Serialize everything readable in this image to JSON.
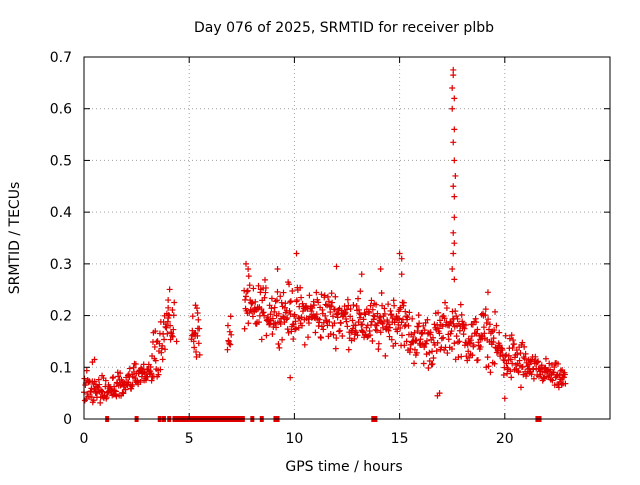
{
  "chart_data": {
    "type": "scatter",
    "title": "Day 076 of 2025, SRMTID for receiver plbb",
    "xlabel": "GPS time / hours",
    "ylabel": "SRMTID / TECUs",
    "xlim": [
      0,
      25
    ],
    "ylim": [
      0,
      0.7
    ],
    "xticks": [
      0,
      5,
      10,
      15,
      20
    ],
    "xtick_labels": [
      "0",
      "5",
      "10",
      "15",
      "20"
    ],
    "yticks": [
      0,
      0.1,
      0.2,
      0.3,
      0.4,
      0.5,
      0.6,
      0.7
    ],
    "ytick_labels": [
      "0",
      "0.1",
      "0.2",
      "0.3",
      "0.4",
      "0.5",
      "0.6",
      "0.7"
    ],
    "grid": true,
    "legend": "none",
    "marker": "plus",
    "color": "#e00000",
    "flag_color": "#e00000",
    "series": [
      {
        "name": "SRMTID",
        "profile": [
          [
            0.0,
            0.065
          ],
          [
            0.5,
            0.062
          ],
          [
            1.0,
            0.058
          ],
          [
            1.5,
            0.055
          ],
          [
            2.0,
            0.065
          ],
          [
            2.5,
            0.08
          ],
          [
            3.0,
            0.088
          ],
          [
            3.3,
            0.105
          ],
          [
            3.6,
            0.15
          ],
          [
            4.0,
            0.185
          ],
          [
            5.2,
            0.17
          ],
          [
            6.9,
            0.145
          ],
          [
            7.7,
            0.23
          ],
          [
            8.0,
            0.2
          ],
          [
            8.5,
            0.215
          ],
          [
            9.0,
            0.205
          ],
          [
            9.5,
            0.21
          ],
          [
            10.0,
            0.205
          ],
          [
            10.5,
            0.2
          ],
          [
            11.0,
            0.205
          ],
          [
            11.5,
            0.2
          ],
          [
            12.0,
            0.2
          ],
          [
            12.5,
            0.195
          ],
          [
            13.0,
            0.19
          ],
          [
            13.5,
            0.185
          ],
          [
            14.0,
            0.18
          ],
          [
            14.5,
            0.19
          ],
          [
            15.0,
            0.2
          ],
          [
            15.5,
            0.16
          ],
          [
            16.0,
            0.155
          ],
          [
            16.5,
            0.15
          ],
          [
            17.0,
            0.165
          ],
          [
            17.5,
            0.18
          ],
          [
            18.0,
            0.165
          ],
          [
            18.5,
            0.15
          ],
          [
            19.0,
            0.165
          ],
          [
            19.5,
            0.145
          ],
          [
            20.0,
            0.12
          ],
          [
            20.5,
            0.115
          ],
          [
            21.0,
            0.1
          ],
          [
            21.5,
            0.095
          ],
          [
            22.0,
            0.09
          ],
          [
            22.5,
            0.08
          ],
          [
            22.9,
            0.075
          ]
        ],
        "spikes": [
          [
            17.55,
            0.675
          ],
          [
            17.55,
            0.665
          ],
          [
            17.5,
            0.64
          ],
          [
            17.6,
            0.62
          ],
          [
            17.5,
            0.6
          ],
          [
            17.6,
            0.56
          ],
          [
            17.55,
            0.535
          ],
          [
            17.6,
            0.5
          ],
          [
            17.65,
            0.47
          ],
          [
            17.55,
            0.45
          ],
          [
            17.6,
            0.43
          ],
          [
            17.6,
            0.39
          ],
          [
            17.55,
            0.36
          ],
          [
            17.6,
            0.34
          ],
          [
            17.55,
            0.32
          ],
          [
            17.5,
            0.29
          ],
          [
            17.6,
            0.27
          ],
          [
            7.7,
            0.3
          ],
          [
            7.8,
            0.29
          ],
          [
            9.2,
            0.29
          ],
          [
            10.1,
            0.32
          ],
          [
            12.0,
            0.295
          ],
          [
            13.2,
            0.28
          ],
          [
            14.1,
            0.29
          ],
          [
            15.0,
            0.32
          ],
          [
            15.1,
            0.31
          ],
          [
            15.1,
            0.28
          ],
          [
            5.3,
            0.22
          ],
          [
            5.4,
            0.205
          ],
          [
            4.0,
            0.23
          ],
          [
            4.0,
            0.215
          ],
          [
            4.4,
            0.15
          ],
          [
            0.4,
            0.11
          ],
          [
            0.5,
            0.115
          ],
          [
            9.8,
            0.08
          ],
          [
            19.2,
            0.245
          ],
          [
            20.0,
            0.04
          ],
          [
            16.9,
            0.05
          ],
          [
            16.8,
            0.045
          ]
        ],
        "gaps": [
          [
            4.3,
            5.1
          ],
          [
            5.5,
            6.8
          ],
          [
            7.0,
            7.6
          ]
        ],
        "zero_flags": [
          1.1,
          2.5,
          3.6,
          3.8,
          4.05,
          4.3,
          4.4,
          4.5,
          4.6,
          4.7,
          4.8,
          4.9,
          5.0,
          5.15,
          5.3,
          5.45,
          5.55,
          5.65,
          5.75,
          5.85,
          5.95,
          6.05,
          6.15,
          6.25,
          6.35,
          6.45,
          6.55,
          6.65,
          6.75,
          6.85,
          6.95,
          7.05,
          7.15,
          7.25,
          7.35,
          7.45,
          7.55,
          8.0,
          8.45,
          9.1,
          9.2,
          13.75,
          13.85,
          21.55,
          21.65
        ]
      }
    ]
  }
}
